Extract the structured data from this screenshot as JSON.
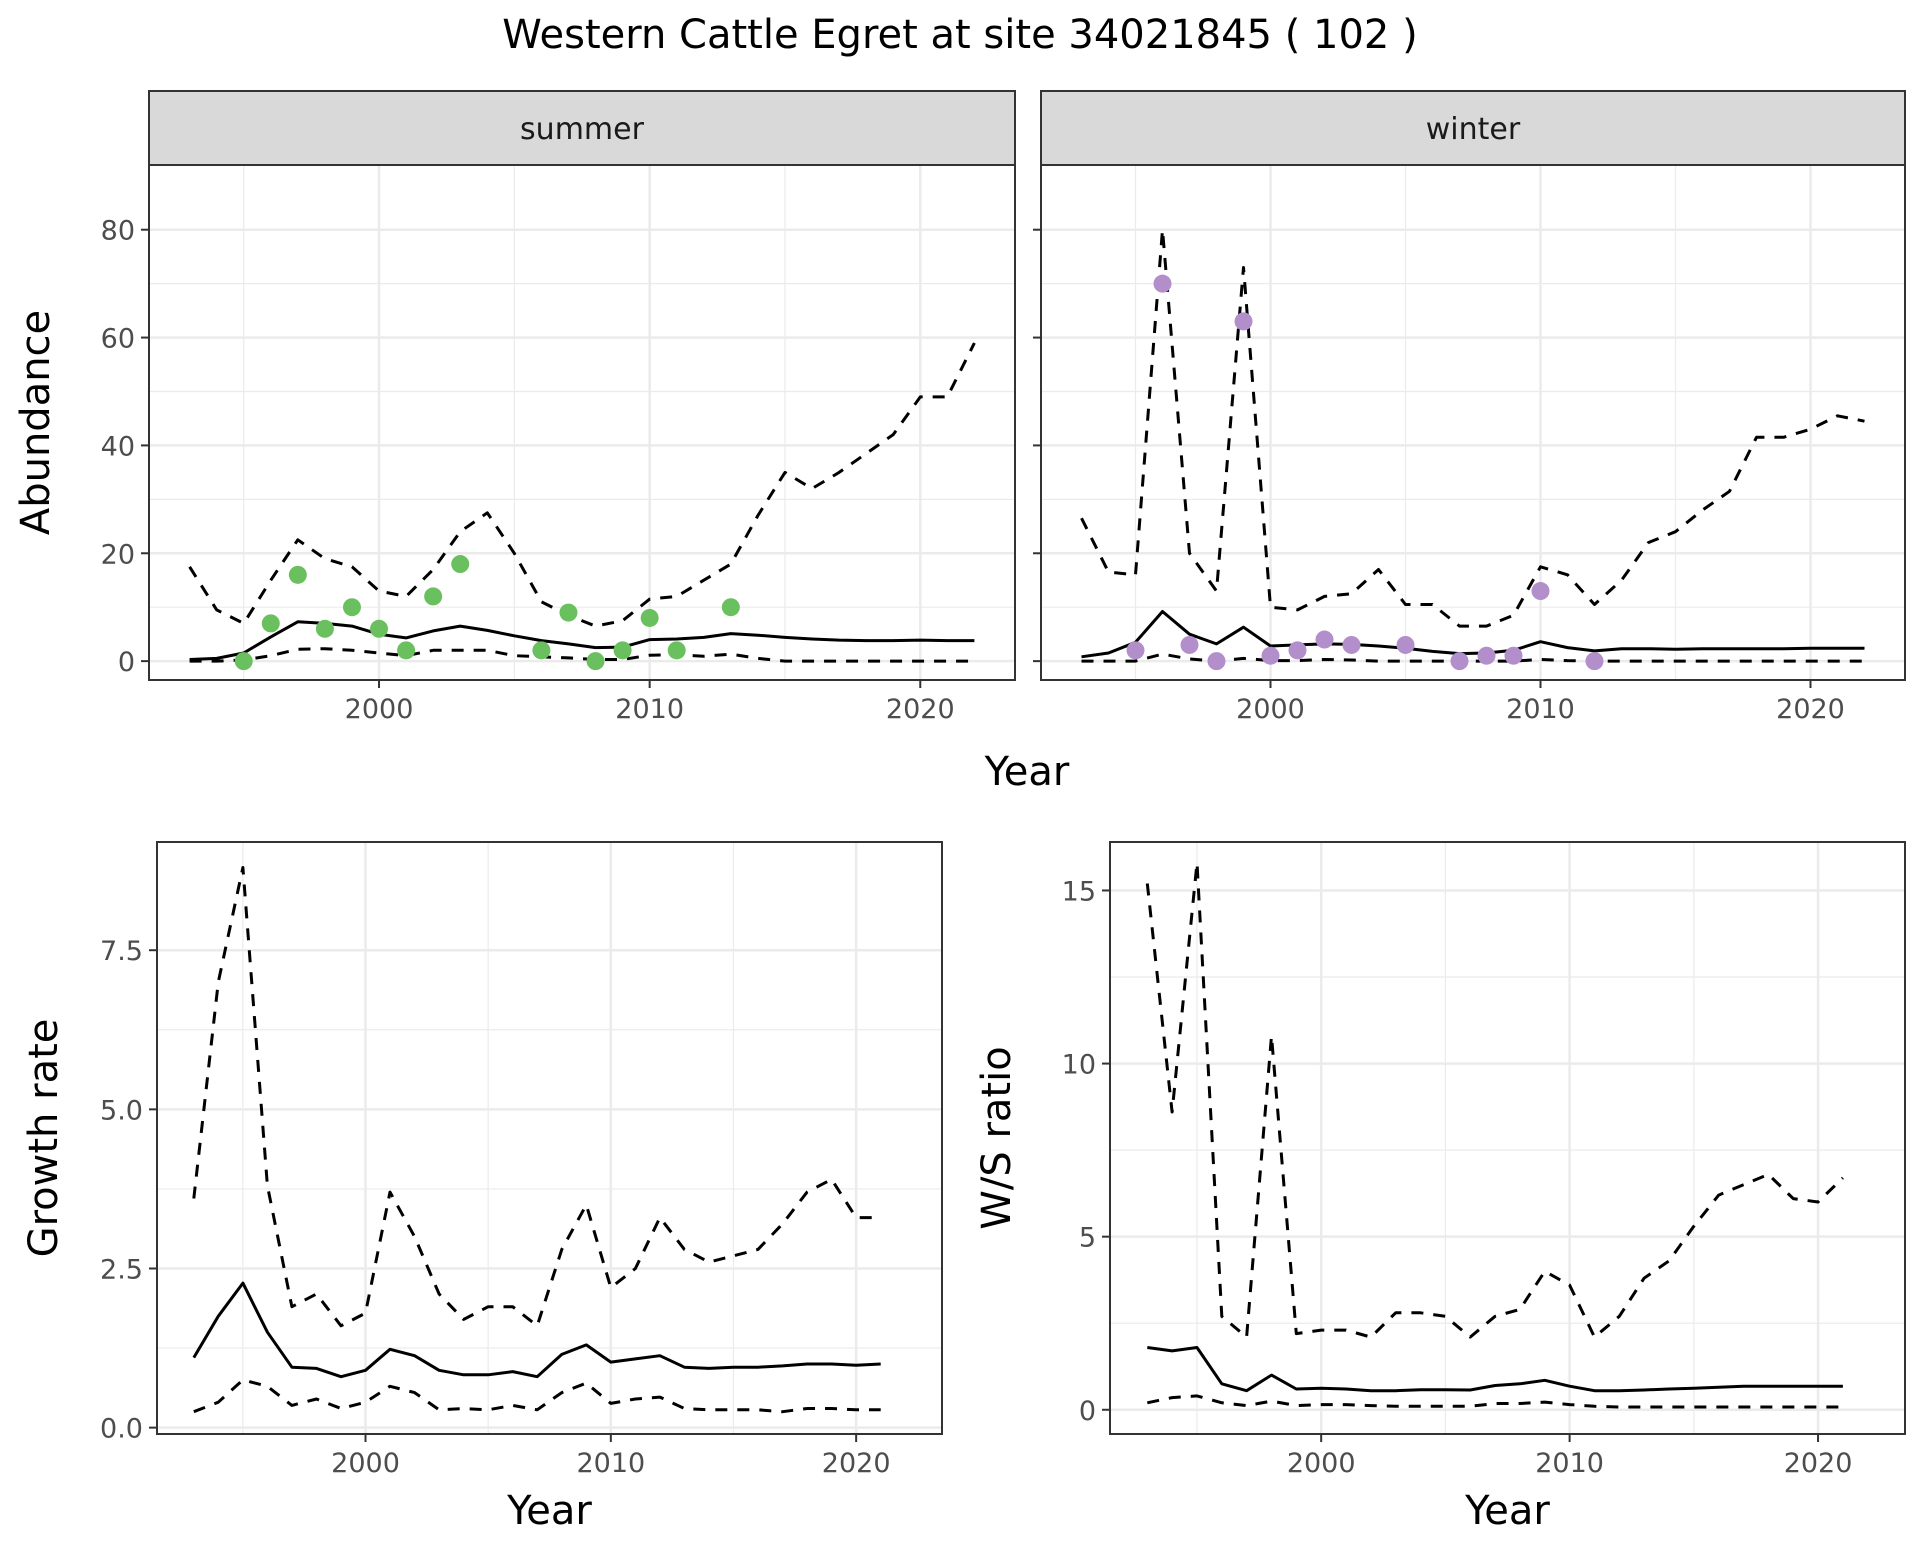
{
  "title": "Western Cattle Egret at site 34021845 ( 102 )",
  "colors": {
    "summer_points": "#6abf5e",
    "winter_points": "#b28fcb",
    "line": "#000000",
    "grid": "#ebebeb",
    "strip_bg": "#d9d9d9"
  },
  "chart_data": [
    {
      "type": "scatter",
      "panel": "summer",
      "strip_label": "summer",
      "xlabel": "Year",
      "ylabel": "Abundance",
      "xticks": [
        2000,
        2010,
        2020
      ],
      "yticks": [
        0,
        20,
        40,
        60,
        80
      ],
      "ylim": [
        -3.5,
        92
      ],
      "xlim": [
        1991.5,
        2023.5
      ],
      "grid": true,
      "points": {
        "x": [
          1995,
          1996,
          1997,
          1998,
          1999,
          2000,
          2001,
          2002,
          2003,
          2006,
          2007,
          2008,
          2009,
          2010,
          2011,
          2013
        ],
        "y": [
          0,
          7,
          16,
          6,
          10,
          6,
          2,
          12,
          18,
          2,
          9,
          0,
          2,
          8,
          2,
          10
        ]
      },
      "series": [
        {
          "style": "solid",
          "x": [
            1993,
            1994,
            1995,
            1996,
            1997,
            1998,
            1999,
            2000,
            2001,
            2002,
            2003,
            2004,
            2005,
            2006,
            2007,
            2008,
            2009,
            2010,
            2011,
            2012,
            2013,
            2014,
            2015,
            2016,
            2017,
            2018,
            2019,
            2020,
            2021,
            2022
          ],
          "y": [
            0.3,
            0.5,
            1.5,
            4.5,
            7.3,
            7,
            6.5,
            5,
            4.3,
            5.6,
            6.5,
            5.7,
            4.7,
            3.8,
            3.2,
            2.5,
            2.6,
            4,
            4.1,
            4.4,
            5.1,
            4.8,
            4.4,
            4.1,
            3.9,
            3.8,
            3.8,
            3.9,
            3.8,
            3.8
          ]
        },
        {
          "style": "dashed",
          "x": [
            1993,
            1994,
            1995,
            1996,
            1997,
            1998,
            1999,
            2000,
            2001,
            2002,
            2003,
            2004,
            2005,
            2006,
            2007,
            2008,
            2009,
            2010,
            2011,
            2012,
            2013,
            2014,
            2015,
            2016,
            2017,
            2018,
            2019,
            2020,
            2021,
            2022
          ],
          "y": [
            17.5,
            9.5,
            7,
            15,
            22.5,
            19,
            17.5,
            13,
            12,
            17,
            24,
            27.5,
            20,
            11,
            8.5,
            6.5,
            7.5,
            11.5,
            12,
            15,
            18,
            27,
            35,
            32,
            35,
            38.5,
            42,
            49,
            49,
            59
          ]
        },
        {
          "style": "dashed",
          "x": [
            1993,
            1994,
            1995,
            1996,
            1997,
            1998,
            1999,
            2000,
            2001,
            2002,
            2003,
            2004,
            2005,
            2006,
            2007,
            2008,
            2009,
            2010,
            2011,
            2012,
            2013,
            2014,
            2015,
            2016,
            2017,
            2018,
            2019,
            2020,
            2021,
            2022
          ],
          "y": [
            0,
            0,
            0.2,
            1,
            2.2,
            2.3,
            2,
            1.5,
            1,
            2,
            2,
            2,
            1,
            0.8,
            0.6,
            0.3,
            0.3,
            1.1,
            1.2,
            0.9,
            1.3,
            0.5,
            0,
            0,
            0,
            0,
            0,
            0,
            0,
            0
          ]
        }
      ]
    },
    {
      "type": "scatter",
      "panel": "winter",
      "strip_label": "winter",
      "xlabel": "Year",
      "ylabel": "Abundance",
      "xticks": [
        2000,
        2010,
        2020
      ],
      "yticks": [
        0,
        20,
        40,
        60,
        80
      ],
      "ylim": [
        -3.5,
        92
      ],
      "xlim": [
        1991.5,
        2023.5
      ],
      "grid": true,
      "points": {
        "x": [
          1995,
          1996,
          1997,
          1998,
          1999,
          2000,
          2001,
          2002,
          2003,
          2005,
          2007,
          2008,
          2009,
          2010,
          2012
        ],
        "y": [
          2,
          70,
          3,
          0,
          63,
          1,
          2,
          4,
          3,
          3,
          0,
          1,
          1,
          13,
          0
        ]
      },
      "series": [
        {
          "style": "solid",
          "x": [
            1993,
            1994,
            1995,
            1996,
            1997,
            1998,
            1999,
            2000,
            2001,
            2002,
            2003,
            2004,
            2005,
            2006,
            2007,
            2008,
            2009,
            2010,
            2011,
            2012,
            2013,
            2014,
            2015,
            2016,
            2017,
            2018,
            2019,
            2020,
            2021,
            2022
          ],
          "y": [
            0.8,
            1.5,
            3.5,
            9.2,
            5,
            3.2,
            6.3,
            2.8,
            3,
            3.2,
            3.1,
            2.8,
            2.4,
            1.8,
            1.4,
            1.5,
            2,
            3.6,
            2.5,
            1.9,
            2.3,
            2.3,
            2.2,
            2.3,
            2.3,
            2.3,
            2.3,
            2.4,
            2.4,
            2.4
          ]
        },
        {
          "style": "dashed",
          "x": [
            1993,
            1994,
            1995,
            1996,
            1997,
            1998,
            1999,
            2000,
            2001,
            2002,
            2003,
            2004,
            2005,
            2006,
            2007,
            2008,
            2009,
            2010,
            2011,
            2012,
            2013,
            2014,
            2015,
            2016,
            2017,
            2018,
            2019,
            2020,
            2021,
            2022
          ],
          "y": [
            26.5,
            16.5,
            16,
            80,
            20,
            13,
            73,
            10,
            9.5,
            12,
            12.5,
            17,
            10.5,
            10.5,
            6.5,
            6.5,
            8.5,
            17.5,
            16,
            10.5,
            15,
            22,
            24,
            28,
            31.5,
            41.5,
            41.5,
            43,
            45.5,
            44.5
          ]
        },
        {
          "style": "dashed",
          "x": [
            1993,
            1994,
            1995,
            1996,
            1997,
            1998,
            1999,
            2000,
            2001,
            2002,
            2003,
            2004,
            2005,
            2006,
            2007,
            2008,
            2009,
            2010,
            2011,
            2012,
            2013,
            2014,
            2015,
            2016,
            2017,
            2018,
            2019,
            2020,
            2021,
            2022
          ],
          "y": [
            0,
            0,
            0,
            1.3,
            0.4,
            0,
            0.5,
            0.1,
            0.1,
            0.3,
            0.2,
            0,
            0,
            0,
            0,
            0,
            0,
            0.3,
            0.1,
            0,
            0,
            0,
            0,
            0,
            0,
            0,
            0,
            0,
            0,
            0
          ]
        }
      ]
    },
    {
      "type": "line",
      "panel": "growth",
      "xlabel": "Year",
      "ylabel": "Growth rate",
      "xticks": [
        2000,
        2010,
        2020
      ],
      "yticks": [
        0.0,
        2.5,
        5.0,
        7.5
      ],
      "ytick_labels": [
        "0.0",
        "2.5",
        "5.0",
        "7.5"
      ],
      "ylim": [
        -0.1,
        9.2
      ],
      "xlim": [
        1991.5,
        2023.5
      ],
      "grid": true,
      "series": [
        {
          "style": "solid",
          "x": [
            1993,
            1994,
            1995,
            1996,
            1997,
            1998,
            1999,
            2000,
            2001,
            2002,
            2003,
            2004,
            2005,
            2006,
            2007,
            2008,
            2009,
            2010,
            2011,
            2012,
            2013,
            2014,
            2015,
            2016,
            2017,
            2018,
            2019,
            2020,
            2021
          ],
          "y": [
            1.1,
            1.75,
            2.27,
            1.5,
            0.95,
            0.93,
            0.8,
            0.9,
            1.23,
            1.13,
            0.9,
            0.83,
            0.83,
            0.88,
            0.8,
            1.15,
            1.3,
            1.03,
            1.08,
            1.13,
            0.95,
            0.93,
            0.95,
            0.95,
            0.97,
            1.0,
            1.0,
            0.98,
            1.0
          ]
        },
        {
          "style": "dashed",
          "x": [
            1993,
            1994,
            1995,
            1996,
            1997,
            1998,
            1999,
            2000,
            2001,
            2002,
            2003,
            2004,
            2005,
            2006,
            2007,
            2008,
            2009,
            2010,
            2011,
            2012,
            2013,
            2014,
            2015,
            2016,
            2017,
            2018,
            2019,
            2020,
            2021
          ],
          "y": [
            3.6,
            7.0,
            8.8,
            3.8,
            1.9,
            2.1,
            1.6,
            1.8,
            3.7,
            3.0,
            2.1,
            1.7,
            1.9,
            1.9,
            1.6,
            2.8,
            3.5,
            2.2,
            2.5,
            3.3,
            2.8,
            2.6,
            2.7,
            2.8,
            3.2,
            3.7,
            3.9,
            3.3,
            3.3
          ]
        },
        {
          "style": "dashed",
          "x": [
            1993,
            1994,
            1995,
            1996,
            1997,
            1998,
            1999,
            2000,
            2001,
            2002,
            2003,
            2004,
            2005,
            2006,
            2007,
            2008,
            2009,
            2010,
            2011,
            2012,
            2013,
            2014,
            2015,
            2016,
            2017,
            2018,
            2019,
            2020,
            2021
          ],
          "y": [
            0.25,
            0.4,
            0.75,
            0.65,
            0.35,
            0.45,
            0.3,
            0.4,
            0.65,
            0.55,
            0.28,
            0.3,
            0.28,
            0.35,
            0.28,
            0.55,
            0.7,
            0.38,
            0.45,
            0.48,
            0.3,
            0.28,
            0.28,
            0.28,
            0.25,
            0.3,
            0.3,
            0.28,
            0.28
          ]
        }
      ]
    },
    {
      "type": "line",
      "panel": "ws_ratio",
      "xlabel": "Year",
      "ylabel": "W/S ratio",
      "xticks": [
        2000,
        2010,
        2020
      ],
      "yticks": [
        0,
        5,
        10,
        15
      ],
      "ylim": [
        -0.7,
        16.4
      ],
      "xlim": [
        1991.5,
        2023.5
      ],
      "grid": true,
      "series": [
        {
          "style": "solid",
          "x": [
            1993,
            1994,
            1995,
            1996,
            1997,
            1998,
            1999,
            2000,
            2001,
            2002,
            2003,
            2004,
            2005,
            2006,
            2007,
            2008,
            2009,
            2010,
            2011,
            2012,
            2013,
            2014,
            2015,
            2016,
            2017,
            2018,
            2019,
            2020,
            2021
          ],
          "y": [
            1.8,
            1.7,
            1.8,
            0.75,
            0.55,
            1.0,
            0.6,
            0.62,
            0.6,
            0.55,
            0.55,
            0.58,
            0.58,
            0.57,
            0.7,
            0.75,
            0.85,
            0.68,
            0.55,
            0.55,
            0.57,
            0.6,
            0.62,
            0.65,
            0.68,
            0.68,
            0.68,
            0.68,
            0.68
          ]
        },
        {
          "style": "dashed",
          "x": [
            1993,
            1994,
            1995,
            1996,
            1997,
            1998,
            1999,
            2000,
            2001,
            2002,
            2003,
            2004,
            2005,
            2006,
            2007,
            2008,
            2009,
            2010,
            2011,
            2012,
            2013,
            2014,
            2015,
            2016,
            2017,
            2018,
            2019,
            2020,
            2021
          ],
          "y": [
            15.2,
            8.6,
            15.8,
            2.7,
            2.1,
            10.8,
            2.2,
            2.3,
            2.3,
            2.1,
            2.8,
            2.8,
            2.7,
            2.1,
            2.7,
            2.9,
            4.0,
            3.6,
            2.1,
            2.7,
            3.8,
            4.3,
            5.3,
            6.2,
            6.5,
            6.8,
            6.1,
            6.0,
            6.7
          ]
        },
        {
          "style": "dashed",
          "x": [
            1993,
            1994,
            1995,
            1996,
            1997,
            1998,
            1999,
            2000,
            2001,
            2002,
            2003,
            2004,
            2005,
            2006,
            2007,
            2008,
            2009,
            2010,
            2011,
            2012,
            2013,
            2014,
            2015,
            2016,
            2017,
            2018,
            2019,
            2020,
            2021
          ],
          "y": [
            0.2,
            0.35,
            0.4,
            0.2,
            0.12,
            0.25,
            0.12,
            0.15,
            0.15,
            0.12,
            0.1,
            0.1,
            0.1,
            0.1,
            0.18,
            0.18,
            0.22,
            0.15,
            0.1,
            0.08,
            0.08,
            0.08,
            0.08,
            0.08,
            0.08,
            0.08,
            0.08,
            0.08,
            0.08
          ]
        }
      ]
    }
  ]
}
